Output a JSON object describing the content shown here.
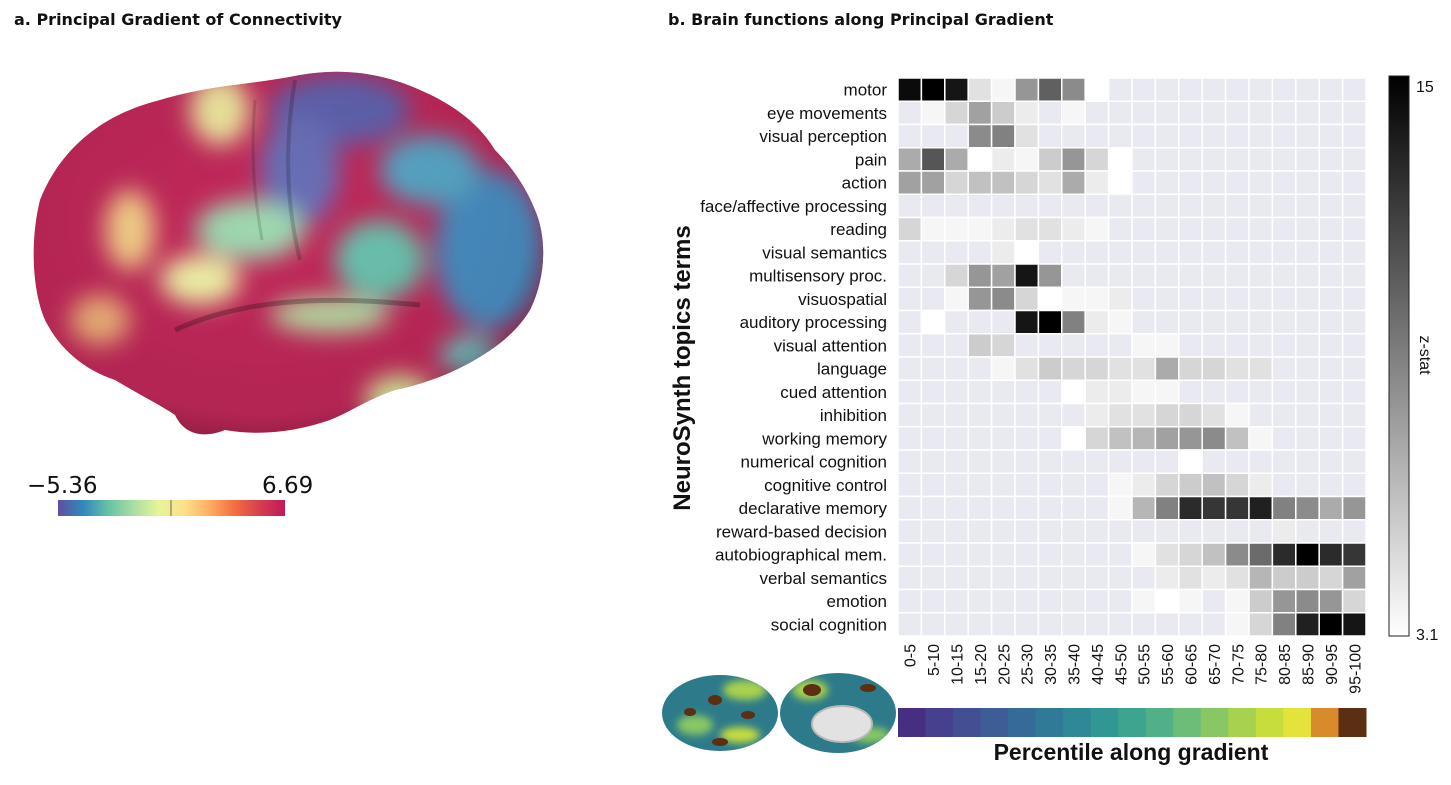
{
  "panel_a": {
    "title": "a. Principal Gradient of Connectivity",
    "colorbar": {
      "min": "−5.36",
      "max": "6.69",
      "colors": [
        "#5e4fa2",
        "#3288bd",
        "#66c2a5",
        "#abdda4",
        "#e6f598",
        "#fee08b",
        "#fdae61",
        "#f46d43",
        "#d53e4f",
        "#c2185b"
      ]
    }
  },
  "panel_b": {
    "title": "b. Brain functions along Principal Gradient",
    "percentile_colors": [
      "#462e80",
      "#46408f",
      "#434f93",
      "#3e5d96",
      "#366b97",
      "#317a97",
      "#2f8896",
      "#329794",
      "#3ca48f",
      "#52b086",
      "#6dbc78",
      "#88c764",
      "#a8d24e",
      "#c7dd3c",
      "#e3e33b",
      "#d98a2d",
      "#5c2e12"
    ]
  },
  "chart_data": {
    "type": "heatmap",
    "ylabel": "NeuroSynth topics terms",
    "xlabel": "Percentile along gradient",
    "colorbar": {
      "label": "z-stat",
      "min": 3.1,
      "max": 15,
      "min_label": "3.1",
      "max_label": "15",
      "colors": [
        "#ffffff",
        "#000000"
      ]
    },
    "columns": [
      "0-5",
      "5-10",
      "10-15",
      "15-20",
      "20-25",
      "25-30",
      "30-35",
      "35-40",
      "40-45",
      "45-50",
      "50-55",
      "55-60",
      "60-65",
      "65-70",
      "70-75",
      "75-80",
      "80-85",
      "85-90",
      "90-95",
      "95-100"
    ],
    "rows": [
      "motor",
      "eye movements",
      "visual perception",
      "pain",
      "action",
      "face/affective processing",
      "reading",
      "visual semantics",
      "multisensory proc.",
      "visuospatial",
      "auditory processing",
      "visual attention",
      "language",
      "cued attention",
      "inhibition",
      "working memory",
      "numerical cognition",
      "cognitive control",
      "declarative memory",
      "reward-based decision",
      "autobiographical mem.",
      "verbal semantics",
      "emotion",
      "social cognition"
    ],
    "values": [
      [
        14.5,
        15,
        14,
        4.5,
        3.5,
        8,
        10.5,
        8.5,
        3.1,
        0,
        0,
        0,
        0,
        0,
        0,
        0,
        0,
        0,
        0,
        0
      ],
      [
        0,
        3.5,
        5,
        7.5,
        5.5,
        4,
        0,
        3.5,
        0,
        0,
        0,
        0,
        0,
        0,
        0,
        0,
        0,
        0,
        0,
        0
      ],
      [
        0,
        0,
        0,
        8.5,
        9,
        4.5,
        0,
        0,
        0,
        0,
        0,
        0,
        0,
        0,
        0,
        0,
        0,
        0,
        0,
        0
      ],
      [
        7,
        11,
        7,
        3.1,
        4,
        3.5,
        5.5,
        8,
        5,
        3.1,
        0,
        0,
        0,
        0,
        0,
        0,
        0,
        0,
        0,
        0
      ],
      [
        7.5,
        7.5,
        5,
        6,
        6,
        5,
        4.5,
        7,
        4,
        3.1,
        0,
        0,
        0,
        0,
        0,
        0,
        0,
        0,
        0,
        0
      ],
      [
        0,
        0,
        0,
        0,
        0,
        0,
        0,
        0,
        0,
        0,
        0,
        0,
        0,
        0,
        0,
        0,
        0,
        0,
        0,
        0
      ],
      [
        5,
        3.5,
        3.5,
        3.5,
        4,
        4.5,
        4.5,
        4,
        3.5,
        0,
        0,
        0,
        0,
        0,
        0,
        0,
        0,
        0,
        0,
        0
      ],
      [
        0,
        0,
        0,
        0,
        4,
        3.1,
        0,
        0,
        0,
        0,
        0,
        0,
        0,
        0,
        0,
        0,
        0,
        0,
        0,
        0
      ],
      [
        0,
        0,
        5,
        8,
        7.5,
        14,
        8,
        0,
        0,
        0,
        0,
        0,
        0,
        0,
        0,
        0,
        0,
        0,
        0,
        0
      ],
      [
        0,
        0,
        3.5,
        8,
        8.5,
        5,
        3.1,
        3.5,
        3.5,
        4,
        0,
        0,
        0,
        0,
        0,
        0,
        0,
        0,
        0,
        0
      ],
      [
        0,
        3.1,
        0,
        0,
        0,
        14,
        15,
        9,
        4,
        3.5,
        0,
        0,
        0,
        0,
        0,
        0,
        0,
        0,
        0,
        0
      ],
      [
        0,
        0,
        0,
        5.5,
        5,
        0,
        0,
        0,
        0,
        0,
        3.5,
        3.5,
        0,
        0,
        0,
        0,
        0,
        0,
        0,
        0
      ],
      [
        0,
        0,
        0,
        0,
        3.5,
        4.5,
        5.5,
        5,
        5,
        4.5,
        4.5,
        7,
        5,
        5,
        4.5,
        4.5,
        0,
        0,
        0,
        0
      ],
      [
        0,
        0,
        0,
        0,
        0,
        0,
        0,
        3.1,
        4,
        4,
        3.5,
        3.5,
        0,
        0,
        0,
        0,
        0,
        0,
        0,
        0
      ],
      [
        0,
        0,
        0,
        0,
        0,
        0,
        0,
        0,
        4,
        4.5,
        4.5,
        5,
        5,
        4.5,
        3.5,
        0,
        0,
        0,
        0,
        0
      ],
      [
        0,
        0,
        0,
        0,
        0,
        0,
        0,
        3.1,
        5,
        6,
        6.5,
        7.5,
        8,
        8.5,
        6,
        3.5,
        0,
        0,
        0,
        0
      ],
      [
        0,
        0,
        0,
        0,
        0,
        0,
        0,
        0,
        0,
        0,
        0,
        0,
        3.1,
        0,
        0,
        0,
        0,
        0,
        0,
        0
      ],
      [
        0,
        0,
        0,
        0,
        0,
        0,
        0,
        0,
        0,
        3.5,
        4,
        5,
        5.5,
        6,
        5,
        4,
        0,
        0,
        0,
        0
      ],
      [
        0,
        0,
        0,
        0,
        0,
        0,
        0,
        0,
        0,
        3.5,
        6.5,
        9,
        13,
        12.5,
        12.5,
        13.5,
        9,
        8.5,
        7,
        8
      ],
      [
        0,
        0,
        0,
        0,
        0,
        0,
        0,
        0,
        0,
        0,
        0,
        0,
        0,
        0,
        0,
        0,
        4,
        0,
        0,
        0
      ],
      [
        0,
        0,
        0,
        0,
        0,
        0,
        0,
        0,
        0,
        0,
        3.5,
        4.5,
        5,
        6,
        8.5,
        10,
        13,
        15,
        13,
        12.5
      ],
      [
        0,
        0,
        0,
        0,
        0,
        0,
        0,
        0,
        0,
        0,
        0,
        4,
        4.5,
        4,
        4.5,
        6.5,
        5.5,
        5.5,
        5,
        7.5
      ],
      [
        0,
        0,
        0,
        0,
        0,
        0,
        0,
        0,
        0,
        0,
        3.5,
        3.1,
        3.5,
        0,
        3.5,
        5.5,
        8,
        8.5,
        8,
        5
      ],
      [
        0,
        0,
        0,
        0,
        0,
        0,
        0,
        0,
        0,
        0,
        0,
        0,
        0,
        0,
        3.5,
        5,
        9,
        13.5,
        15,
        14
      ]
    ]
  }
}
